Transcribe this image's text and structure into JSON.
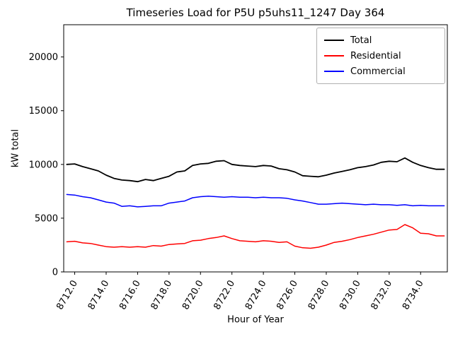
{
  "chart_data": {
    "type": "line",
    "title": "Timeseries Load for P5U p5uhs11_1247  Day 364",
    "xlabel": "Hour of Year",
    "ylabel": "kW total",
    "xlim": [
      8711.3,
      8735.7
    ],
    "ylim": [
      0,
      23000
    ],
    "grid": false,
    "legend_position": "upper right",
    "x_ticks": {
      "values": [
        8712,
        8714,
        8716,
        8718,
        8720,
        8722,
        8724,
        8726,
        8728,
        8730,
        8732,
        8734
      ],
      "labels": [
        "8712.0",
        "8714.0",
        "8716.0",
        "8718.0",
        "8720.0",
        "8722.0",
        "8724.0",
        "8726.0",
        "8728.0",
        "8730.0",
        "8732.0",
        "8734.0"
      ]
    },
    "y_ticks": {
      "values": [
        0,
        5000,
        10000,
        15000,
        20000
      ],
      "labels": [
        "0",
        "5000",
        "10000",
        "15000",
        "20000"
      ]
    },
    "x": [
      8711.5,
      8712.0,
      8712.5,
      8713.0,
      8713.5,
      8714.0,
      8714.5,
      8715.0,
      8715.5,
      8716.0,
      8716.5,
      8717.0,
      8717.5,
      8718.0,
      8718.5,
      8719.0,
      8719.5,
      8720.0,
      8720.5,
      8721.0,
      8721.5,
      8722.0,
      8722.5,
      8723.0,
      8723.5,
      8724.0,
      8724.5,
      8725.0,
      8725.5,
      8726.0,
      8726.5,
      8727.0,
      8727.5,
      8728.0,
      8728.5,
      8729.0,
      8729.5,
      8730.0,
      8730.5,
      8731.0,
      8731.5,
      8732.0,
      8732.5,
      8733.0,
      8733.5,
      8734.0,
      8734.5,
      8735.0,
      8735.5
    ],
    "series": [
      {
        "name": "Total",
        "color": "#000000",
        "line_width": 1.8,
        "values": [
          10000,
          10050,
          9800,
          9600,
          9400,
          9000,
          8700,
          8550,
          8500,
          8400,
          8600,
          8500,
          8700,
          8900,
          9300,
          9400,
          9900,
          10050,
          10100,
          10300,
          10350,
          10000,
          9900,
          9850,
          9800,
          9900,
          9850,
          9600,
          9500,
          9300,
          8950,
          8900,
          8850,
          9000,
          9200,
          9350,
          9500,
          9700,
          9800,
          9950,
          10200,
          10300,
          10250,
          10600,
          10200,
          9900,
          9700,
          9550,
          9550
        ]
      },
      {
        "name": "Residential",
        "color": "#ff0000",
        "line_width": 1.5,
        "values": [
          2800,
          2850,
          2700,
          2650,
          2500,
          2350,
          2300,
          2350,
          2300,
          2350,
          2300,
          2450,
          2400,
          2550,
          2600,
          2650,
          2900,
          2950,
          3100,
          3200,
          3350,
          3100,
          2900,
          2850,
          2800,
          2900,
          2850,
          2750,
          2800,
          2400,
          2250,
          2200,
          2300,
          2500,
          2750,
          2850,
          3000,
          3200,
          3350,
          3500,
          3700,
          3900,
          3950,
          4400,
          4100,
          3600,
          3550,
          3350,
          3350
        ]
      },
      {
        "name": "Commercial",
        "color": "#0000ff",
        "line_width": 1.5,
        "values": [
          7200,
          7150,
          7000,
          6900,
          6700,
          6500,
          6400,
          6100,
          6150,
          6050,
          6100,
          6150,
          6150,
          6400,
          6500,
          6600,
          6900,
          7000,
          7050,
          7000,
          6950,
          7000,
          6950,
          6950,
          6900,
          6950,
          6900,
          6900,
          6850,
          6700,
          6600,
          6450,
          6300,
          6300,
          6350,
          6400,
          6350,
          6300,
          6250,
          6300,
          6250,
          6250,
          6200,
          6250,
          6150,
          6200,
          6150,
          6150,
          6150
        ]
      }
    ]
  }
}
